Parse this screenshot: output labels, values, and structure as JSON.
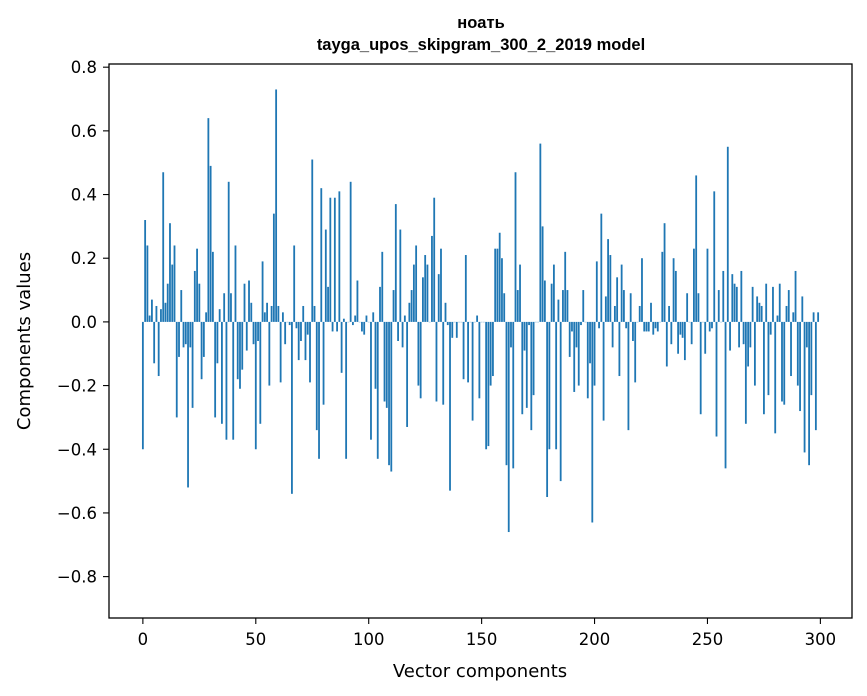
{
  "chart_data": {
    "type": "bar",
    "title_line1": "ноать",
    "title_line2": "tayga_upos_skipgram_300_2_2019 model",
    "xlabel": "Vector components",
    "ylabel": "Components values",
    "xlim": [
      -15,
      314
    ],
    "ylim": [
      -0.93,
      0.81
    ],
    "xticks": [
      0,
      50,
      100,
      150,
      200,
      250,
      300
    ],
    "yticks": [
      -0.8,
      -0.6,
      -0.4,
      -0.2,
      0.0,
      0.2,
      0.4,
      0.6,
      0.8
    ],
    "ytick_labels": [
      "−0.8",
      "−0.6",
      "−0.4",
      "−0.2",
      "0.0",
      "0.2",
      "0.4",
      "0.6",
      "0.8"
    ],
    "xtick_labels": [
      "0",
      "50",
      "100",
      "150",
      "200",
      "250",
      "300"
    ],
    "bar_color": "#1f77b4",
    "values": [
      -0.4,
      0.32,
      0.24,
      0.02,
      0.07,
      -0.13,
      0.05,
      -0.17,
      0.04,
      0.47,
      0.06,
      0.12,
      0.31,
      0.18,
      0.24,
      -0.3,
      -0.11,
      0.1,
      -0.08,
      -0.07,
      -0.52,
      -0.08,
      -0.27,
      0.16,
      0.23,
      0.12,
      -0.18,
      -0.11,
      0.03,
      0.64,
      0.49,
      0.22,
      -0.3,
      -0.13,
      0.04,
      -0.32,
      0.09,
      -0.37,
      0.44,
      0.09,
      -0.37,
      0.24,
      -0.18,
      -0.21,
      -0.15,
      0.12,
      -0.09,
      0.13,
      0.06,
      -0.07,
      -0.4,
      -0.06,
      -0.32,
      0.19,
      0.03,
      0.06,
      -0.2,
      0.05,
      0.34,
      0.73,
      0.05,
      -0.19,
      0.03,
      -0.07,
      0.0,
      -0.01,
      -0.54,
      0.24,
      -0.02,
      -0.12,
      -0.06,
      0.05,
      -0.12,
      -0.04,
      -0.19,
      0.51,
      0.05,
      -0.34,
      -0.43,
      0.42,
      -0.26,
      0.29,
      0.11,
      0.39,
      -0.03,
      0.39,
      -0.03,
      0.41,
      -0.16,
      0.01,
      -0.43,
      0.0,
      0.44,
      -0.01,
      0.02,
      0.13,
      0.0,
      -0.03,
      -0.04,
      0.02,
      0.0,
      -0.37,
      0.03,
      -0.21,
      -0.43,
      0.11,
      0.22,
      -0.25,
      -0.27,
      -0.45,
      -0.47,
      0.1,
      0.37,
      -0.06,
      0.29,
      -0.08,
      0.02,
      -0.33,
      0.06,
      0.1,
      0.18,
      0.24,
      -0.2,
      -0.24,
      0.14,
      0.21,
      0.18,
      0.0,
      0.27,
      0.39,
      -0.25,
      0.15,
      0.23,
      -0.26,
      0.06,
      -0.01,
      -0.53,
      -0.05,
      0.0,
      -0.05,
      0.0,
      0.0,
      -0.18,
      0.21,
      -0.19,
      0.0,
      -0.31,
      0.0,
      0.02,
      -0.24,
      0.0,
      0.0,
      -0.4,
      -0.39,
      -0.2,
      -0.17,
      0.23,
      0.23,
      0.28,
      0.2,
      0.09,
      -0.45,
      -0.66,
      -0.08,
      -0.46,
      0.47,
      0.1,
      0.18,
      -0.29,
      -0.09,
      -0.27,
      -0.01,
      -0.34,
      -0.23,
      0.0,
      0.0,
      0.56,
      0.3,
      0.13,
      -0.55,
      -0.4,
      0.12,
      0.18,
      -0.4,
      0.07,
      -0.5,
      0.1,
      0.22,
      0.1,
      -0.11,
      -0.03,
      -0.22,
      -0.08,
      -0.2,
      -0.01,
      0.1,
      0.0,
      -0.24,
      -0.13,
      -0.63,
      -0.2,
      0.19,
      -0.02,
      0.34,
      -0.31,
      0.08,
      0.26,
      0.21,
      -0.08,
      0.05,
      0.14,
      -0.17,
      0.18,
      0.1,
      -0.02,
      -0.34,
      0.09,
      -0.06,
      -0.19,
      0.0,
      0.05,
      0.2,
      -0.03,
      -0.03,
      -0.03,
      0.06,
      -0.04,
      -0.02,
      -0.03,
      0.0,
      0.22,
      0.31,
      -0.14,
      0.05,
      -0.07,
      0.2,
      0.16,
      -0.1,
      -0.04,
      -0.05,
      -0.12,
      0.09,
      0.0,
      -0.07,
      0.23,
      0.46,
      0.09,
      -0.29,
      0.0,
      -0.1,
      0.23,
      -0.03,
      -0.02,
      0.41,
      -0.36,
      0.1,
      0.0,
      0.16,
      -0.46,
      0.55,
      -0.09,
      0.15,
      0.12,
      0.11,
      -0.08,
      0.16,
      -0.07,
      -0.32,
      -0.14,
      -0.08,
      0.11,
      -0.2,
      0.08,
      0.06,
      0.05,
      -0.29,
      0.12,
      -0.23,
      -0.04,
      0.11,
      -0.35,
      0.02,
      0.12,
      -0.25,
      -0.26,
      0.05,
      0.1,
      -0.17,
      0.03,
      0.16,
      -0.2,
      -0.28,
      0.08,
      -0.41,
      -0.08,
      -0.45,
      -0.23,
      0.03,
      -0.34,
      0.03
    ]
  }
}
